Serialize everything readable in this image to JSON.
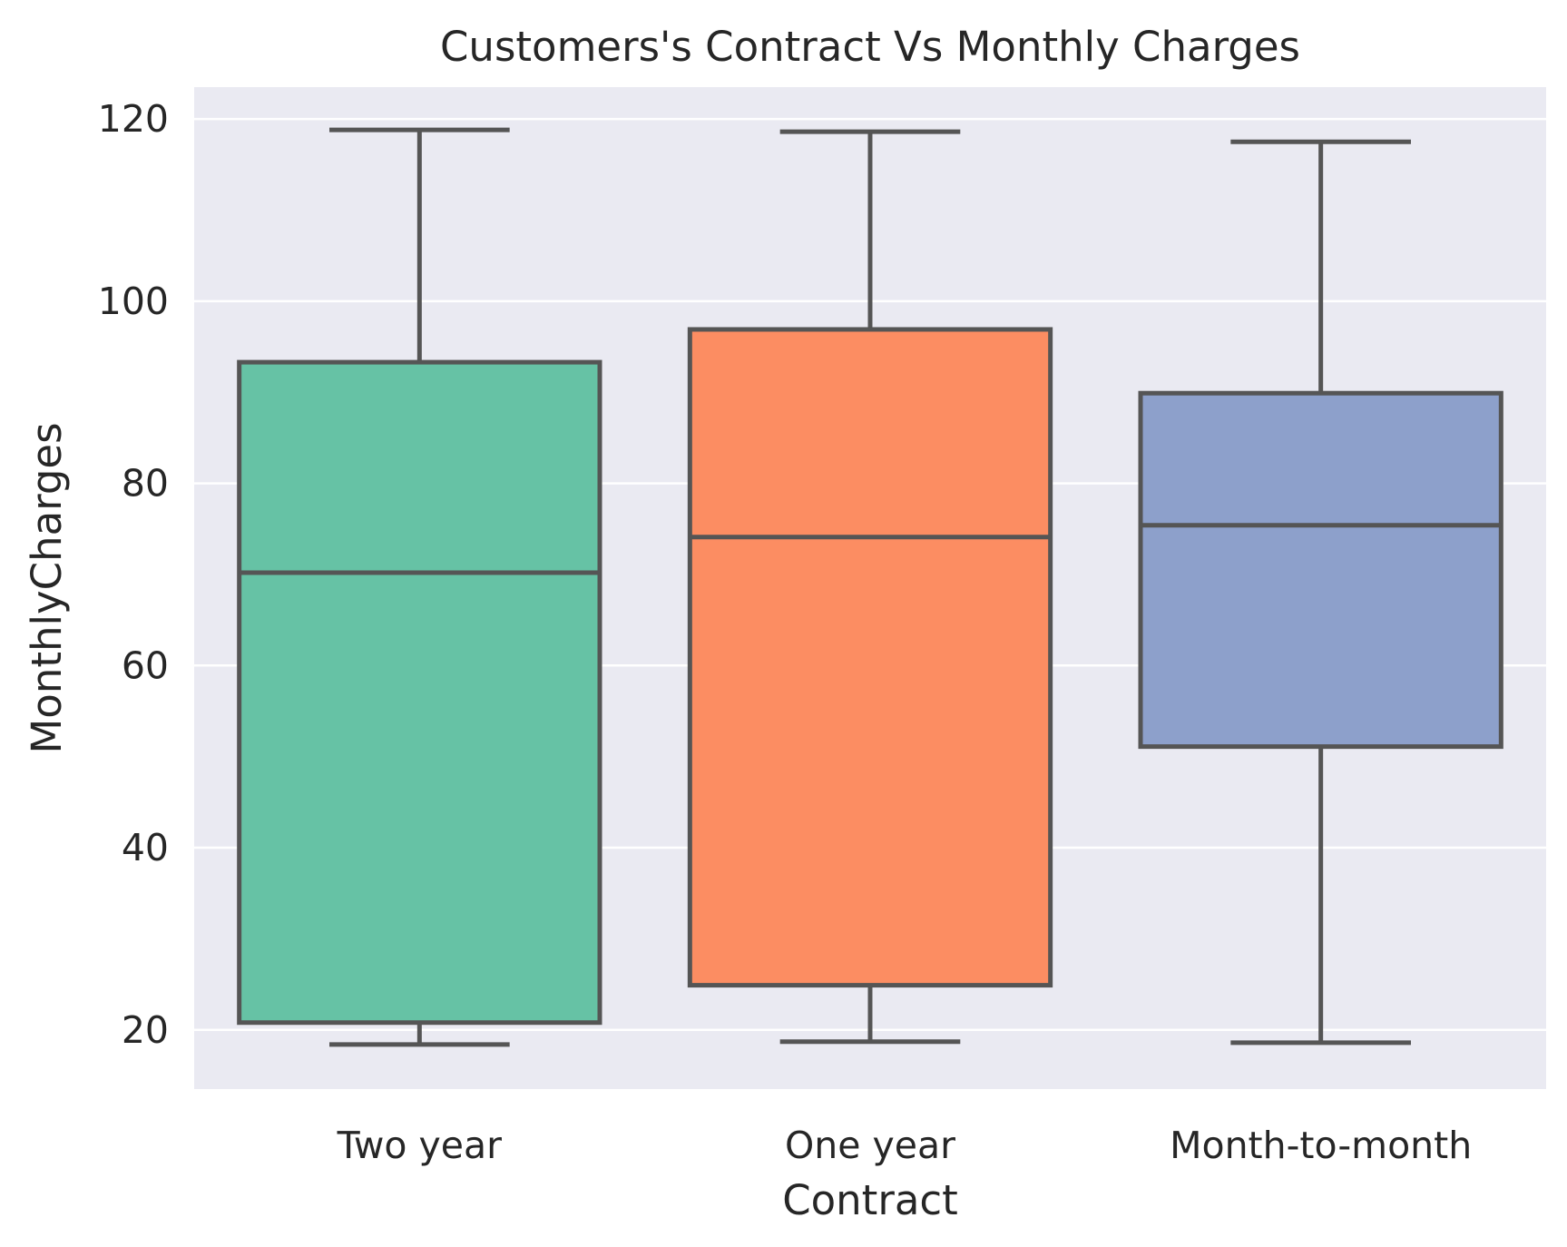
{
  "chart_data": {
    "type": "box",
    "title": "Customers's Contract Vs Monthly Charges",
    "xlabel": "Contract",
    "ylabel": "MonthlyCharges",
    "ylim": [
      13.5,
      123.5
    ],
    "yticks": [
      20,
      40,
      60,
      80,
      100,
      120
    ],
    "grid": "horizontal",
    "background": "#eaeaf2",
    "edge_color": "#555555",
    "categories": [
      "Two year",
      "One year",
      "Month-to-month"
    ],
    "boxes": [
      {
        "category": "Two year",
        "whisker_low": 18.4,
        "q1": 20.8,
        "median": 70.2,
        "q3": 93.3,
        "whisker_high": 118.8,
        "color": "#66c2a5"
      },
      {
        "category": "One year",
        "whisker_low": 18.7,
        "q1": 24.9,
        "median": 74.1,
        "q3": 96.9,
        "whisker_high": 118.6,
        "color": "#fc8d62"
      },
      {
        "category": "Month-to-month",
        "whisker_low": 18.6,
        "q1": 51.1,
        "median": 75.4,
        "q3": 89.9,
        "whisker_high": 117.5,
        "color": "#8da0cb"
      }
    ]
  }
}
